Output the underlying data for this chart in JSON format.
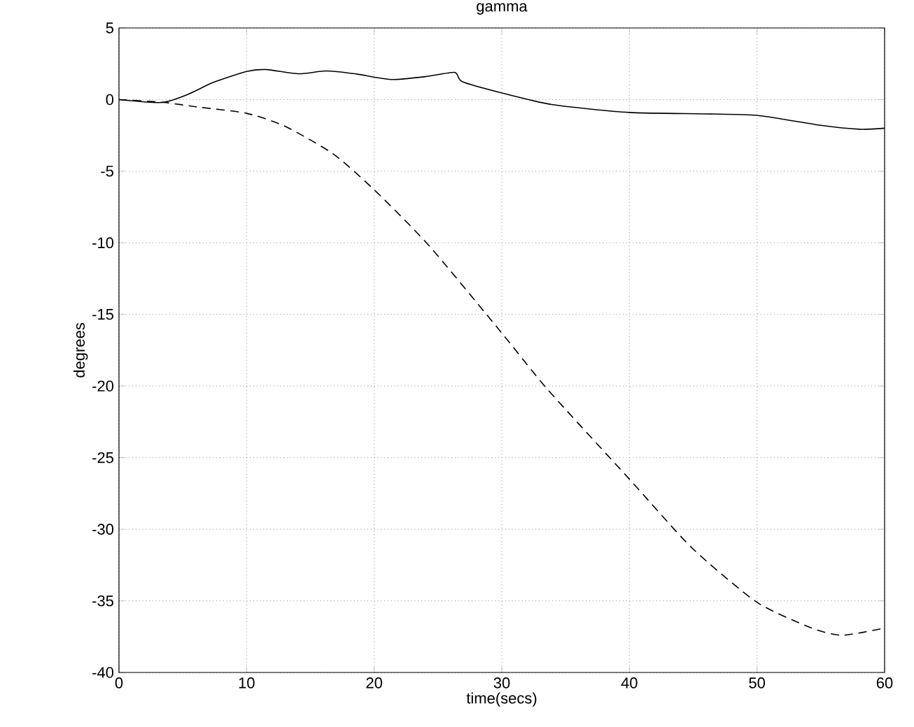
{
  "chart_data": {
    "type": "line",
    "title": "gamma",
    "xlabel": "time(secs)",
    "ylabel": "degrees",
    "xlim": [
      0,
      60
    ],
    "ylim": [
      -40,
      5
    ],
    "xticks": [
      0,
      10,
      20,
      30,
      40,
      50,
      60
    ],
    "yticks": [
      -40,
      -35,
      -30,
      -25,
      -20,
      -15,
      -10,
      -5,
      0,
      5
    ],
    "grid": true,
    "series": [
      {
        "color": "#000000",
        "line_style": "solid",
        "x": [
          0,
          3.4,
          5.5,
          7.4,
          10,
          11.5,
          14.1,
          16.2,
          18.5,
          21.3,
          24,
          26.3,
          26.9,
          30,
          34,
          40,
          46,
          50,
          55,
          58,
          60
        ],
        "values": [
          0,
          -0.2,
          0.4,
          1.2,
          1.96,
          2.1,
          1.8,
          2.0,
          1.8,
          1.4,
          1.6,
          1.9,
          1.25,
          0.46,
          -0.36,
          -0.9,
          -1.0,
          -1.1,
          -1.8,
          -2.07,
          -2.0
        ]
      },
      {
        "color": "#000000",
        "line_style": "dashed",
        "x": [
          0,
          3.5,
          6,
          10,
          13,
          16.8,
          20,
          24.3,
          30,
          33.6,
          40,
          44.9,
          50,
          54.3,
          56.7,
          60
        ],
        "values": [
          0,
          -0.2,
          -0.5,
          -0.96,
          -1.86,
          -3.8,
          -6.3,
          -10.2,
          -16.3,
          -20.25,
          -26.5,
          -31.3,
          -35.1,
          -36.9,
          -37.4,
          -36.9
        ]
      }
    ]
  }
}
